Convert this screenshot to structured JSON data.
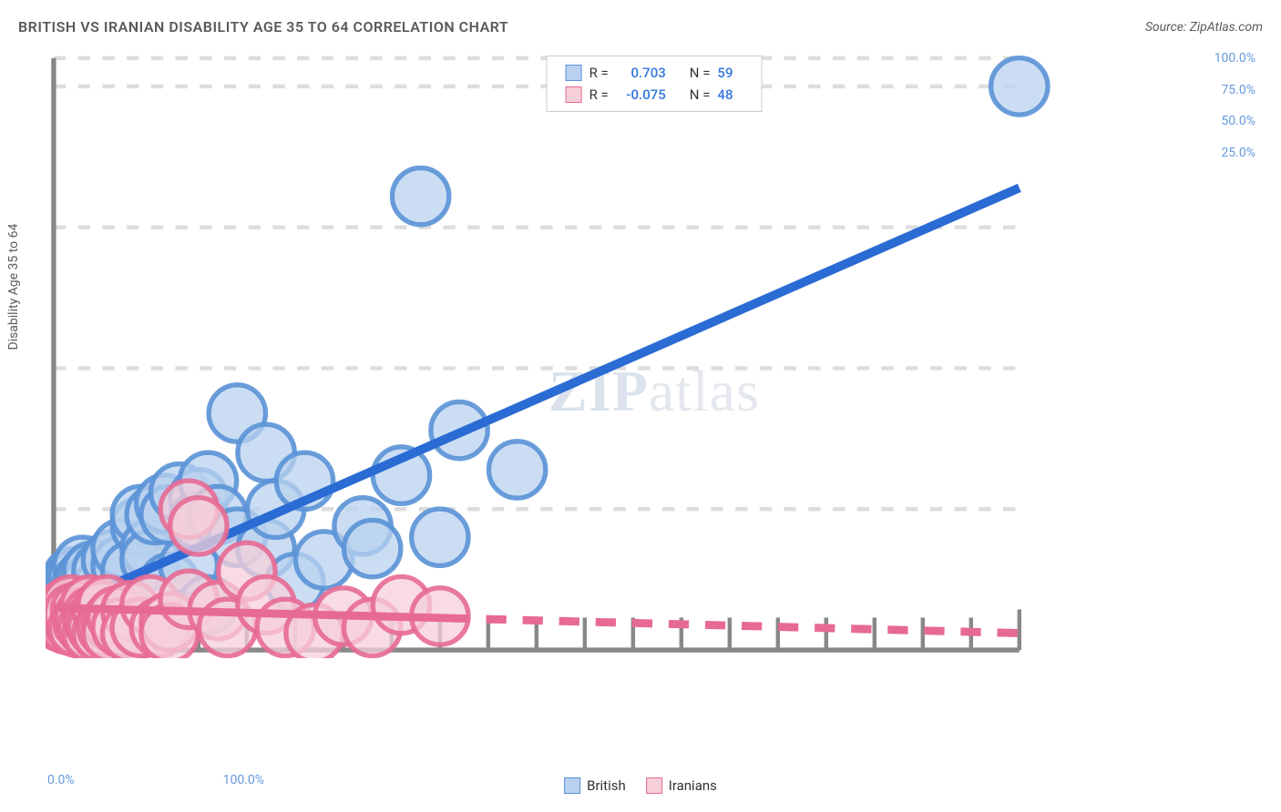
{
  "title": "BRITISH VS IRANIAN DISABILITY AGE 35 TO 64 CORRELATION CHART",
  "source": "Source: ZipAtlas.com",
  "y_axis_label": "Disability Age 35 to 64",
  "watermark_bold": "ZIP",
  "watermark_rest": "atlas",
  "chart": {
    "type": "scatter",
    "xlim": [
      0,
      100
    ],
    "ylim": [
      0,
      105
    ],
    "x_ticks_labels": [
      {
        "pos": 0,
        "label": "0.0%"
      },
      {
        "pos": 100,
        "label": "100.0%"
      }
    ],
    "x_minor_ticks": [
      5,
      10,
      15,
      20,
      25,
      30,
      35,
      40,
      45,
      50,
      55,
      60,
      65,
      70,
      75,
      80,
      85,
      90,
      95
    ],
    "y_ticks": [
      {
        "pos": 25,
        "label": "25.0%"
      },
      {
        "pos": 50,
        "label": "50.0%"
      },
      {
        "pos": 75,
        "label": "75.0%"
      },
      {
        "pos": 100,
        "label": "100.0%"
      }
    ],
    "grid_color": "#dddddd",
    "axis_color": "#888888",
    "background_color": "#ffffff",
    "tick_label_color": "#6699dd",
    "series": [
      {
        "name": "British",
        "marker_fill": "#b9d1ef",
        "marker_stroke": "#5a92d6",
        "marker_opacity": 0.75,
        "marker_radius": 7,
        "trend_color": "#2a6bd4",
        "trend_width": 2.2,
        "trend_dash": "none",
        "trend": {
          "x1": 0,
          "y1": 7,
          "x2": 100,
          "y2": 82
        },
        "R_label": "R =",
        "R": "0.703",
        "N_label": "N =",
        "N": "59",
        "points": [
          [
            0.5,
            7
          ],
          [
            0.8,
            8
          ],
          [
            1,
            8.5
          ],
          [
            1,
            9
          ],
          [
            1,
            6
          ],
          [
            1,
            10
          ],
          [
            1.2,
            7
          ],
          [
            1.5,
            10
          ],
          [
            1.5,
            9
          ],
          [
            1.8,
            12
          ],
          [
            2,
            11
          ],
          [
            2,
            13
          ],
          [
            2,
            8
          ],
          [
            2.5,
            13
          ],
          [
            2.5,
            9
          ],
          [
            3,
            15
          ],
          [
            3,
            12
          ],
          [
            3.5,
            13
          ],
          [
            4,
            12
          ],
          [
            4,
            14
          ],
          [
            5,
            11
          ],
          [
            5,
            14
          ],
          [
            5,
            6
          ],
          [
            6,
            10
          ],
          [
            6,
            16
          ],
          [
            7,
            15
          ],
          [
            7,
            18
          ],
          [
            8,
            14
          ],
          [
            9,
            22
          ],
          [
            9,
            24
          ],
          [
            10,
            18
          ],
          [
            10,
            16
          ],
          [
            10.5,
            24
          ],
          [
            11.5,
            26
          ],
          [
            12,
            24
          ],
          [
            12,
            12
          ],
          [
            13,
            28
          ],
          [
            14,
            15
          ],
          [
            15,
            27
          ],
          [
            15,
            23
          ],
          [
            16,
            30
          ],
          [
            16,
            8
          ],
          [
            17,
            24
          ],
          [
            19,
            20
          ],
          [
            19,
            42
          ],
          [
            22,
            35
          ],
          [
            22,
            18
          ],
          [
            23,
            25
          ],
          [
            25,
            12
          ],
          [
            26,
            30
          ],
          [
            28,
            16
          ],
          [
            32,
            22
          ],
          [
            33,
            18
          ],
          [
            36,
            31
          ],
          [
            38,
            80.5
          ],
          [
            40,
            20
          ],
          [
            42,
            39
          ],
          [
            48,
            32
          ],
          [
            100,
            100
          ]
        ]
      },
      {
        "name": "Iranians",
        "marker_fill": "#f6cfd9",
        "marker_stroke": "#e76a93",
        "marker_opacity": 0.75,
        "marker_radius": 7,
        "trend_color": "#e76a93",
        "trend_width": 2,
        "trend_dash": "5,4",
        "trend_solid_until": 41,
        "trend": {
          "x1": 0,
          "y1": 7.5,
          "x2": 100,
          "y2": 3
        },
        "R_label": "R =",
        "R": "-0.075",
        "N_label": "N =",
        "N": "48",
        "points": [
          [
            0.5,
            6
          ],
          [
            0.8,
            5
          ],
          [
            1,
            7
          ],
          [
            1,
            5
          ],
          [
            1.2,
            6
          ],
          [
            1.5,
            7
          ],
          [
            1.5,
            4.5
          ],
          [
            1.8,
            8
          ],
          [
            2,
            5
          ],
          [
            2,
            6.5
          ],
          [
            2.5,
            4
          ],
          [
            2.8,
            7
          ],
          [
            3,
            5
          ],
          [
            3.2,
            6
          ],
          [
            3.5,
            4
          ],
          [
            3.8,
            8
          ],
          [
            4,
            3
          ],
          [
            4,
            6
          ],
          [
            4.2,
            5
          ],
          [
            4.5,
            4
          ],
          [
            5,
            7
          ],
          [
            5,
            3
          ],
          [
            5.5,
            8
          ],
          [
            5.5,
            4
          ],
          [
            6,
            5
          ],
          [
            6,
            3
          ],
          [
            6.5,
            6
          ],
          [
            7,
            4
          ],
          [
            8,
            7
          ],
          [
            8,
            3
          ],
          [
            9,
            4
          ],
          [
            10,
            8
          ],
          [
            11,
            4
          ],
          [
            12,
            5
          ],
          [
            12,
            3
          ],
          [
            14,
            25
          ],
          [
            14,
            9
          ],
          [
            15,
            22
          ],
          [
            17,
            7
          ],
          [
            18,
            4
          ],
          [
            20,
            14
          ],
          [
            22,
            8
          ],
          [
            24,
            4
          ],
          [
            27,
            3
          ],
          [
            30,
            6
          ],
          [
            33,
            4
          ],
          [
            36,
            8
          ],
          [
            40,
            6
          ]
        ]
      }
    ]
  },
  "bottom_legend": [
    {
      "name": "British",
      "fill": "#b9d1ef",
      "stroke": "#5a92d6"
    },
    {
      "name": "Iranians",
      "fill": "#f6cfd9",
      "stroke": "#e76a93"
    }
  ]
}
